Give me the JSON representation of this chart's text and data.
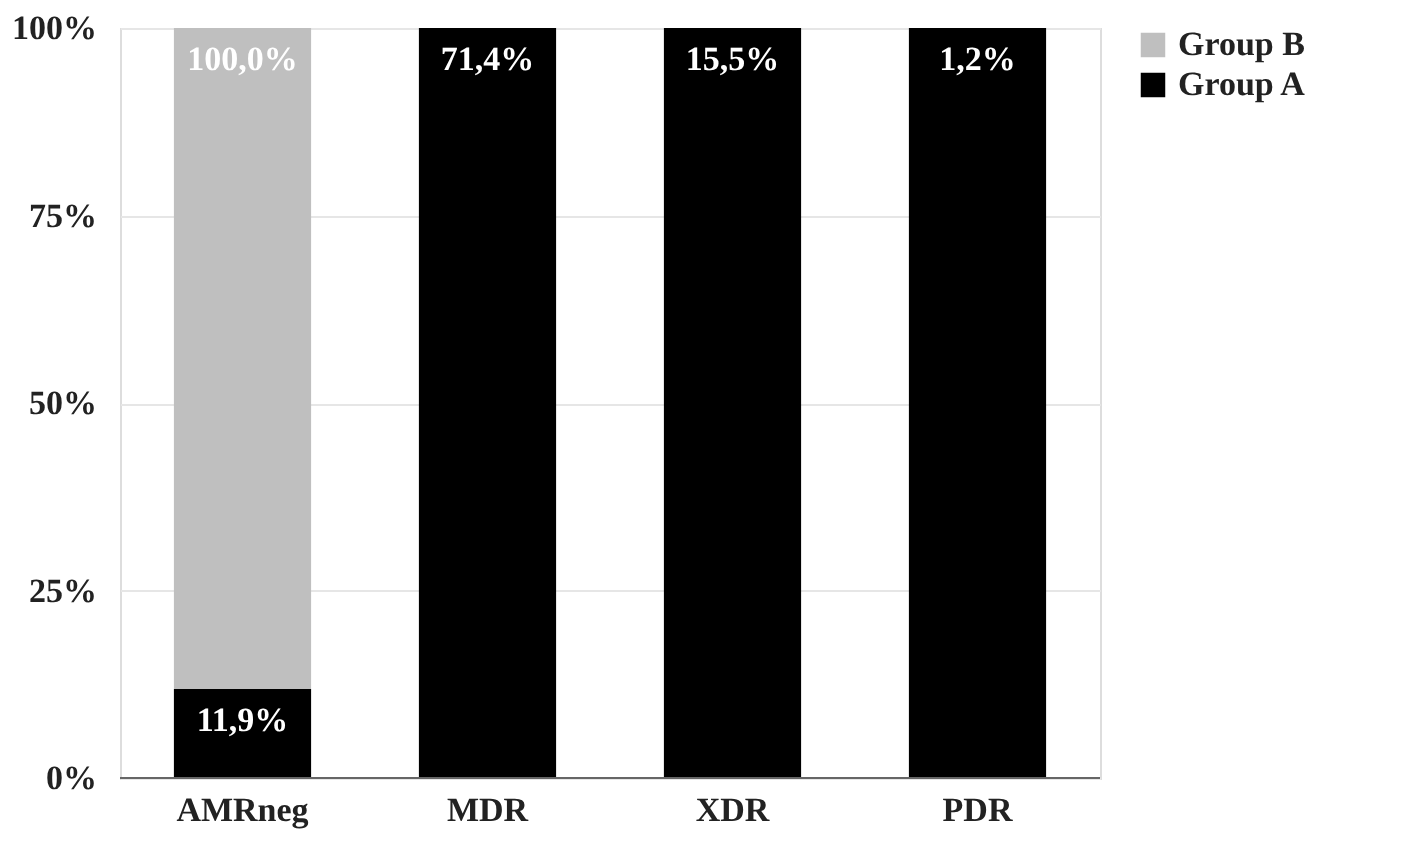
{
  "chart_data": {
    "type": "bar",
    "stacked": true,
    "categories": [
      "AMRneg",
      "MDR",
      "XDR",
      "PDR"
    ],
    "series": [
      {
        "name": "Group A",
        "color": "#000000",
        "values": [
          11.9,
          100,
          100,
          100
        ]
      },
      {
        "name": "Group B",
        "color": "#bfbfbf",
        "values": [
          88.1,
          0,
          0,
          0
        ]
      }
    ],
    "annotations": [
      {
        "text": "100,0%",
        "x": "AMRneg",
        "y": 100
      },
      {
        "text": "11,9%",
        "x": "AMRneg",
        "y": 11.9
      },
      {
        "text": "71,4%",
        "x": "MDR",
        "y": 100
      },
      {
        "text": "15,5%",
        "x": "XDR",
        "y": 100
      },
      {
        "text": "1,2%",
        "x": "PDR",
        "y": 100
      }
    ],
    "ylim": [
      0,
      100
    ],
    "yticks": [
      {
        "value": 0,
        "label": "0%"
      },
      {
        "value": 25,
        "label": "25%"
      },
      {
        "value": 50,
        "label": "50%"
      },
      {
        "value": 75,
        "label": "75%"
      },
      {
        "value": 100,
        "label": "100%"
      }
    ],
    "grid": "y",
    "legend": "top right"
  }
}
